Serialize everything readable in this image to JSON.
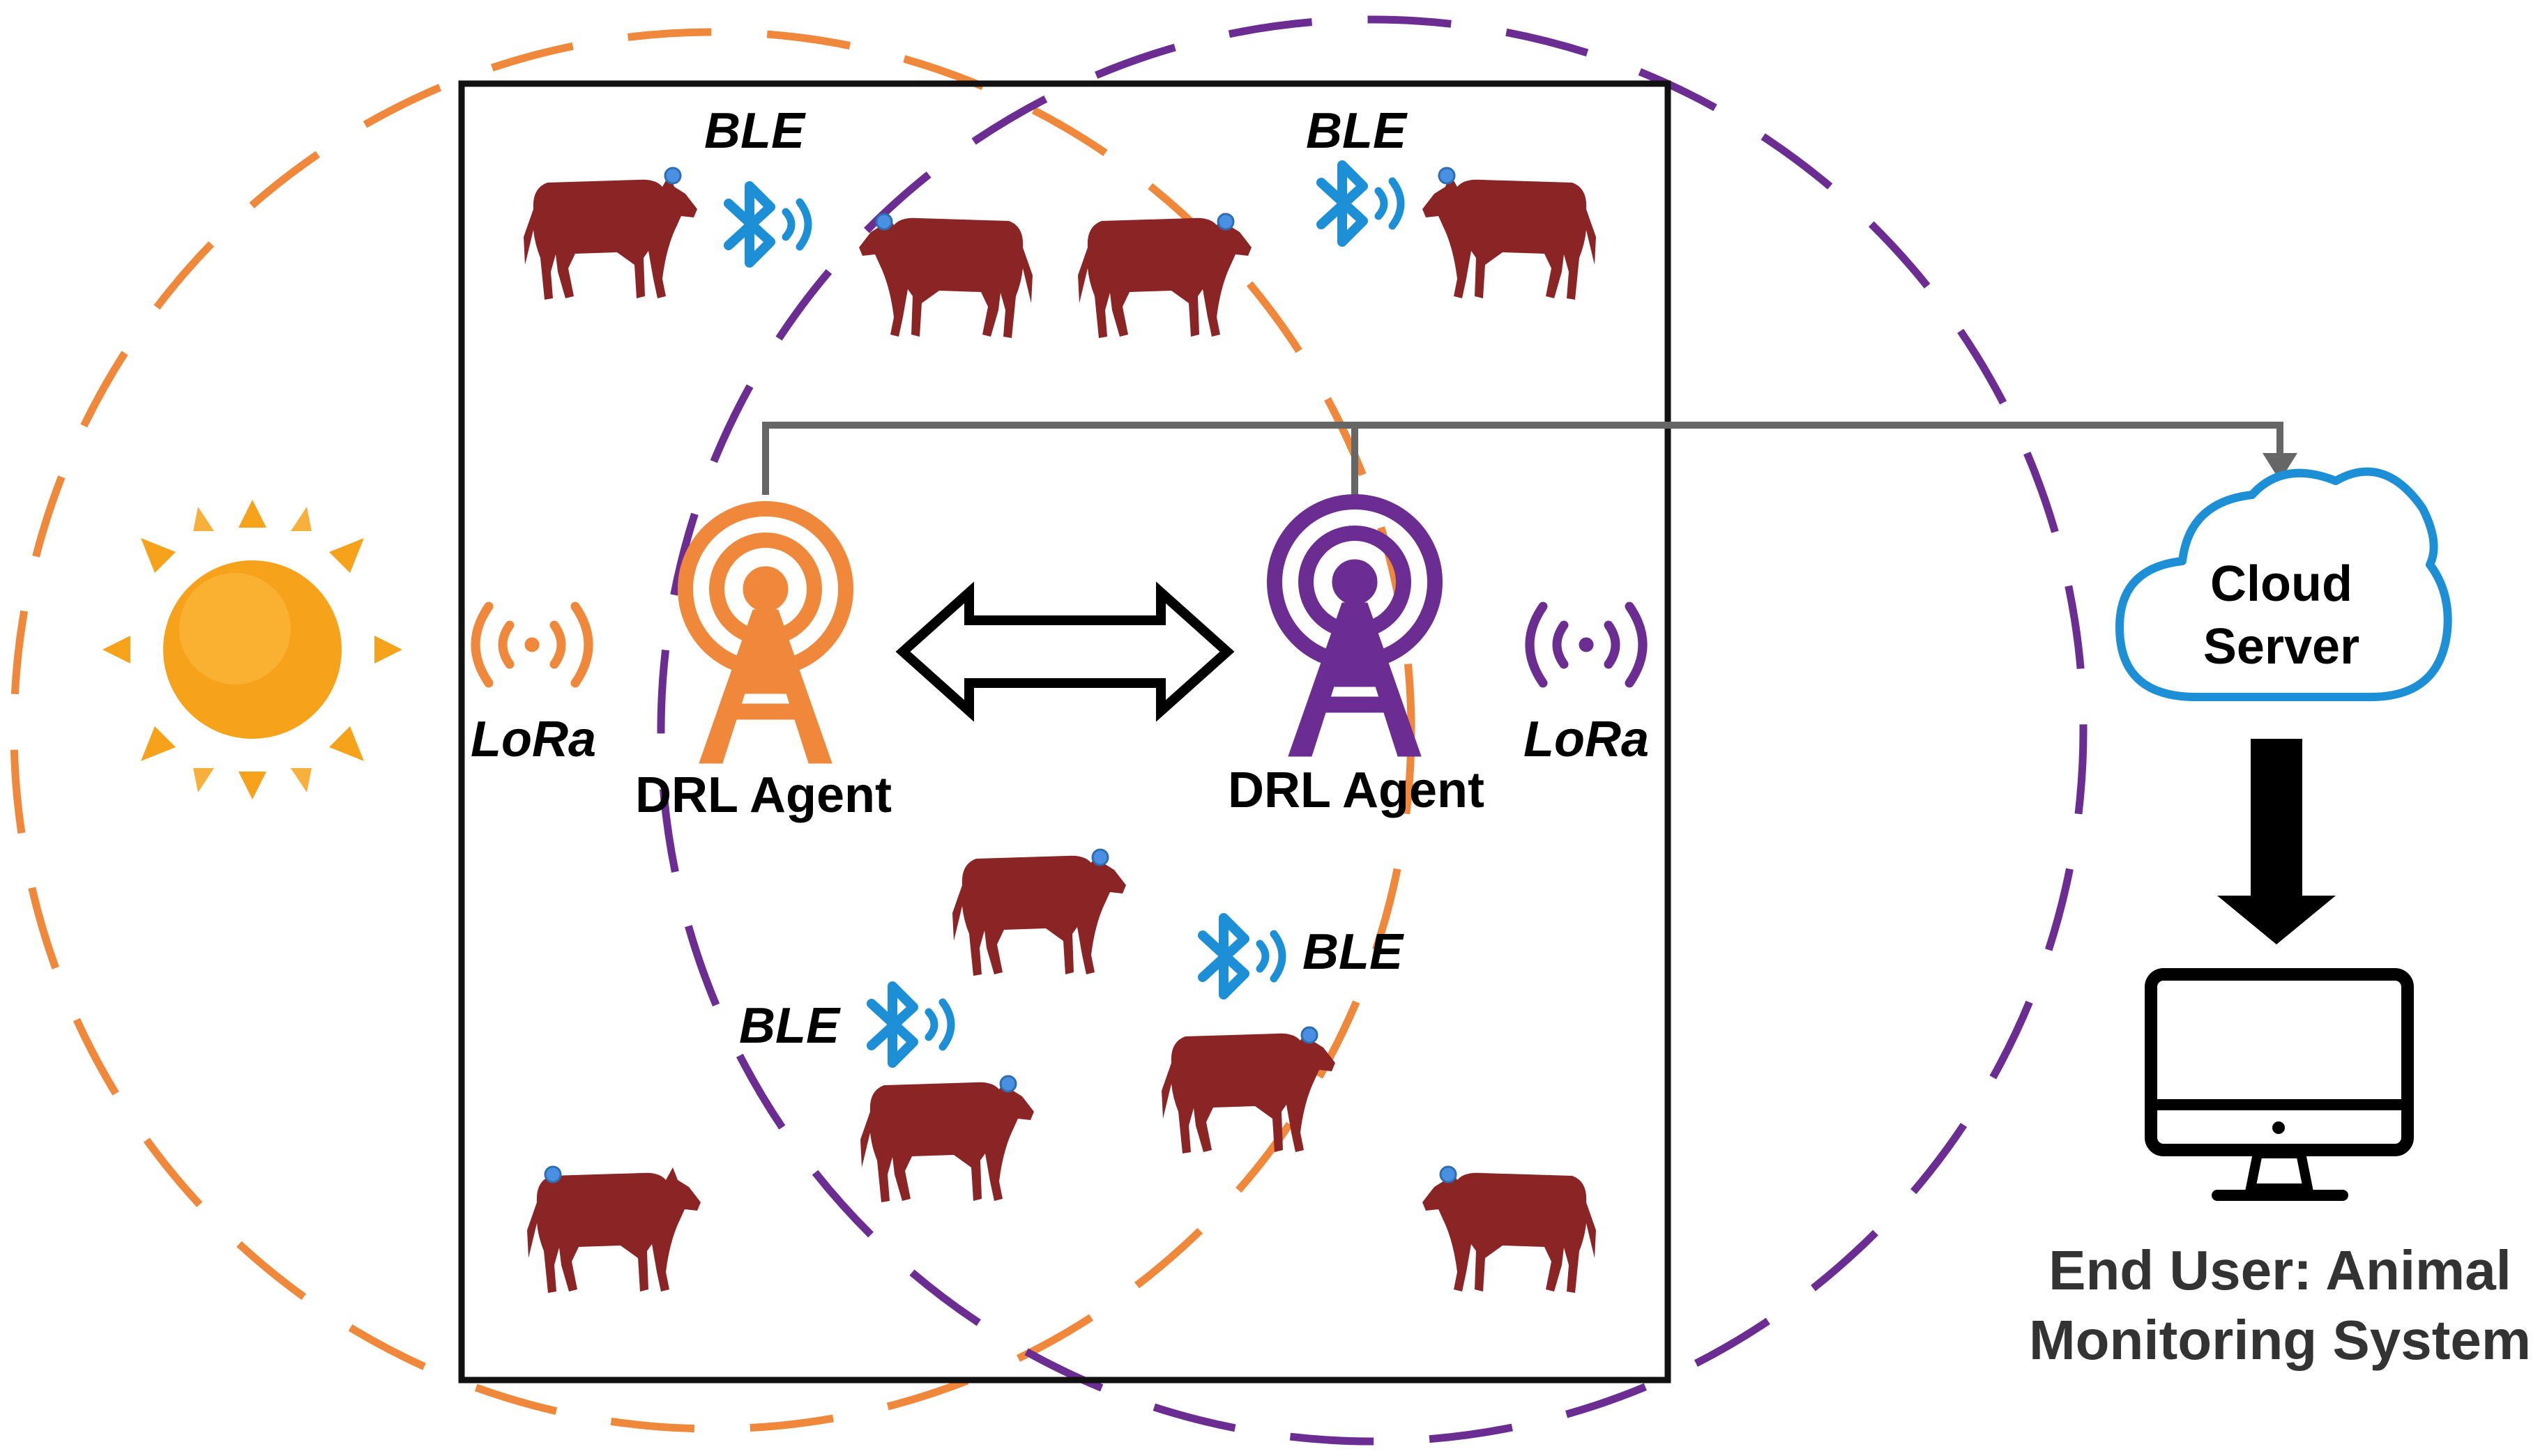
{
  "colors": {
    "orange": "#F0883C",
    "purple": "#6B2D91",
    "cow": "#8B2525",
    "bluetooth": "#1C8FD6",
    "cloud_outline": "#1C8FD6",
    "connector": "#666666",
    "frame": "#111111",
    "end_user_text": "#333333",
    "sun": "#F7A21B"
  },
  "labels": {
    "ble": "BLE",
    "lora": "LoRa",
    "agent_left": "DRL Agent",
    "agent_right": "DRL Agent",
    "cloud_line1": "Cloud",
    "cloud_line2": "Server",
    "end_user_line1": "End User: Animal",
    "end_user_line2": "Monitoring System"
  },
  "icons": {
    "energy_source": "sun-icon",
    "tower": "radio-tower-icon",
    "wireless": "bluetooth-icon",
    "long_range": "lora-signal-icon",
    "animal": "cow-icon",
    "cloud": "cloud-icon",
    "monitor": "monitor-icon",
    "link": "bidirectional-arrow-icon"
  }
}
